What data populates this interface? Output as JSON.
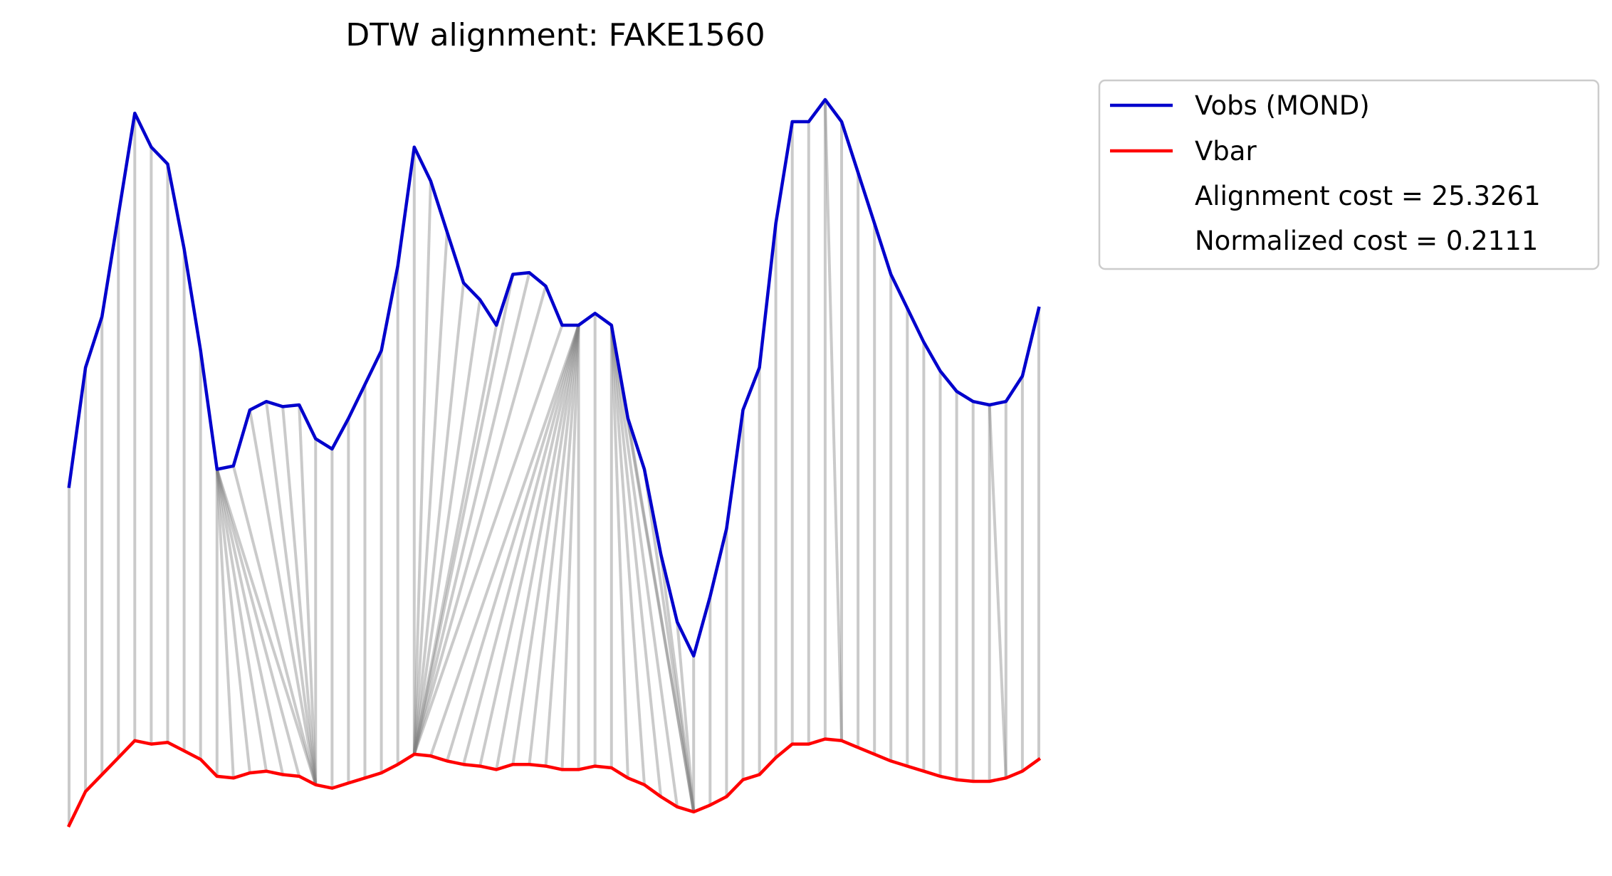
{
  "chart_data": {
    "type": "line",
    "title": "DTW alignment: FAKE1560",
    "xlabel": "",
    "ylabel": "",
    "axes_visible": false,
    "grid": false,
    "legend_position": "outside-right",
    "x": [
      0,
      1,
      2,
      3,
      4,
      5,
      6,
      7,
      8,
      9,
      10,
      11,
      12,
      13,
      14,
      15,
      16,
      17,
      18,
      19,
      20,
      21,
      22,
      23,
      24,
      25,
      26,
      27,
      28,
      29,
      30,
      31,
      32,
      33,
      34,
      35,
      36,
      37,
      38,
      39,
      40,
      41,
      42,
      43,
      44,
      45,
      46,
      47,
      48,
      49,
      50,
      51,
      52,
      53,
      54,
      55,
      56,
      57,
      58,
      59
    ],
    "series": [
      {
        "name": "Vobs (MOND)",
        "color": "#0000cc",
        "values": [
          0.75,
          0.82,
          0.85,
          0.91,
          0.97,
          0.95,
          0.94,
          0.89,
          0.83,
          0.76,
          0.762,
          0.795,
          0.8,
          0.797,
          0.798,
          0.778,
          0.772,
          0.79,
          0.81,
          0.83,
          0.88,
          0.95,
          0.93,
          0.9,
          0.87,
          0.86,
          0.845,
          0.875,
          0.876,
          0.868,
          0.845,
          0.845,
          0.852,
          0.845,
          0.79,
          0.76,
          0.71,
          0.67,
          0.65,
          0.685,
          0.725,
          0.795,
          0.82,
          0.905,
          0.965,
          0.965,
          0.978,
          0.965,
          0.935,
          0.905,
          0.875,
          0.855,
          0.835,
          0.818,
          0.806,
          0.8,
          0.798,
          0.8,
          0.815,
          0.855
        ]
      },
      {
        "name": "Vbar",
        "color": "#ff0000",
        "values": [
          0.55,
          0.57,
          0.58,
          0.59,
          0.6,
          0.598,
          0.599,
          0.594,
          0.589,
          0.579,
          0.578,
          0.581,
          0.582,
          0.58,
          0.579,
          0.574,
          0.572,
          0.575,
          0.578,
          0.581,
          0.586,
          0.592,
          0.591,
          0.588,
          0.586,
          0.585,
          0.583,
          0.586,
          0.586,
          0.585,
          0.583,
          0.583,
          0.585,
          0.584,
          0.578,
          0.574,
          0.567,
          0.561,
          0.558,
          0.562,
          0.567,
          0.577,
          0.58,
          0.59,
          0.598,
          0.598,
          0.601,
          0.6,
          0.596,
          0.592,
          0.588,
          0.585,
          0.582,
          0.579,
          0.577,
          0.576,
          0.576,
          0.578,
          0.582,
          0.589
        ]
      }
    ],
    "alignment_path": [
      [
        0,
        0
      ],
      [
        1,
        1
      ],
      [
        2,
        2
      ],
      [
        3,
        3
      ],
      [
        4,
        4
      ],
      [
        5,
        5
      ],
      [
        6,
        6
      ],
      [
        7,
        7
      ],
      [
        8,
        8
      ],
      [
        9,
        9
      ],
      [
        9,
        10
      ],
      [
        9,
        11
      ],
      [
        9,
        12
      ],
      [
        9,
        13
      ],
      [
        9,
        14
      ],
      [
        9,
        15
      ],
      [
        10,
        15
      ],
      [
        11,
        15
      ],
      [
        12,
        15
      ],
      [
        13,
        15
      ],
      [
        14,
        15
      ],
      [
        15,
        15
      ],
      [
        16,
        16
      ],
      [
        17,
        17
      ],
      [
        18,
        18
      ],
      [
        19,
        19
      ],
      [
        20,
        20
      ],
      [
        21,
        21
      ],
      [
        22,
        21
      ],
      [
        23,
        21
      ],
      [
        24,
        21
      ],
      [
        25,
        21
      ],
      [
        26,
        21
      ],
      [
        27,
        21
      ],
      [
        28,
        21
      ],
      [
        29,
        21
      ],
      [
        30,
        21
      ],
      [
        31,
        22
      ],
      [
        31,
        23
      ],
      [
        31,
        24
      ],
      [
        31,
        25
      ],
      [
        31,
        26
      ],
      [
        31,
        27
      ],
      [
        31,
        28
      ],
      [
        31,
        29
      ],
      [
        31,
        30
      ],
      [
        31,
        31
      ],
      [
        32,
        32
      ],
      [
        33,
        33
      ],
      [
        33,
        34
      ],
      [
        33,
        35
      ],
      [
        33,
        36
      ],
      [
        33,
        37
      ],
      [
        33,
        38
      ],
      [
        34,
        38
      ],
      [
        35,
        38
      ],
      [
        36,
        38
      ],
      [
        37,
        38
      ],
      [
        38,
        38
      ],
      [
        39,
        39
      ],
      [
        40,
        40
      ],
      [
        41,
        41
      ],
      [
        42,
        42
      ],
      [
        43,
        43
      ],
      [
        44,
        44
      ],
      [
        45,
        45
      ],
      [
        46,
        46
      ],
      [
        46,
        47
      ],
      [
        47,
        47
      ],
      [
        48,
        48
      ],
      [
        49,
        49
      ],
      [
        50,
        50
      ],
      [
        51,
        51
      ],
      [
        52,
        52
      ],
      [
        53,
        53
      ],
      [
        54,
        54
      ],
      [
        55,
        55
      ],
      [
        56,
        56
      ],
      [
        56,
        57
      ],
      [
        57,
        57
      ],
      [
        58,
        58
      ],
      [
        59,
        59
      ]
    ],
    "legend": [
      "Vobs (MOND)",
      "Vbar",
      "Alignment cost = 25.3261",
      "Normalized cost = 0.2111"
    ]
  }
}
